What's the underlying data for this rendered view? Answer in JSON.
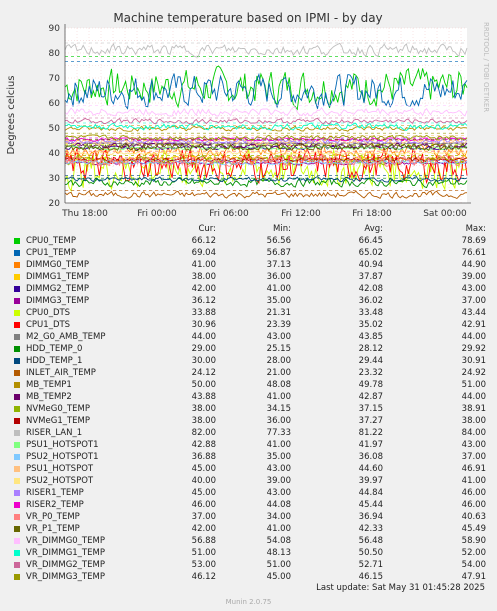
{
  "chart_data": {
    "type": "line",
    "title": "Machine temperature based on IPMI - by day",
    "ylabel": "Degrees celcius",
    "ylim": [
      20,
      90
    ],
    "yticks": [
      20,
      30,
      40,
      50,
      60,
      70,
      80,
      90
    ],
    "xticks": [
      "Thu 18:00",
      "Fri 00:00",
      "Fri 06:00",
      "Fri 12:00",
      "Fri 18:00",
      "Sat 00:00"
    ],
    "grid": true,
    "legend_position": "bottom",
    "columns": [
      "Cur:",
      "Min:",
      "Avg:",
      "Max:"
    ],
    "series": [
      {
        "name": "CPU0_TEMP",
        "color": "#00cc00",
        "cur": "66.12",
        "min": "56.56",
        "avg": "66.45",
        "max": "78.69"
      },
      {
        "name": "CPU1_TEMP",
        "color": "#0066b3",
        "cur": "69.04",
        "min": "56.87",
        "avg": "65.02",
        "max": "76.61"
      },
      {
        "name": "DIMMG0_TEMP",
        "color": "#ff8000",
        "cur": "41.00",
        "min": "37.13",
        "avg": "40.94",
        "max": "44.90"
      },
      {
        "name": "DIMMG1_TEMP",
        "color": "#ffcc00",
        "cur": "38.00",
        "min": "36.00",
        "avg": "37.87",
        "max": "39.00"
      },
      {
        "name": "DIMMG2_TEMP",
        "color": "#330099",
        "cur": "42.00",
        "min": "41.00",
        "avg": "42.08",
        "max": "43.00"
      },
      {
        "name": "DIMMG3_TEMP",
        "color": "#990099",
        "cur": "36.12",
        "min": "35.00",
        "avg": "36.02",
        "max": "37.00"
      },
      {
        "name": "CPU0_DTS",
        "color": "#ccff00",
        "cur": "33.88",
        "min": "21.31",
        "avg": "33.48",
        "max": "43.44"
      },
      {
        "name": "CPU1_DTS",
        "color": "#ff0000",
        "cur": "30.96",
        "min": "23.39",
        "avg": "35.02",
        "max": "42.91"
      },
      {
        "name": "M2_G0_AMB_TEMP",
        "color": "#808080",
        "cur": "44.00",
        "min": "43.00",
        "avg": "43.85",
        "max": "44.00"
      },
      {
        "name": "HDD_TEMP_0",
        "color": "#008f00",
        "cur": "29.00",
        "min": "25.15",
        "avg": "28.12",
        "max": "29.92"
      },
      {
        "name": "HDD_TEMP_1",
        "color": "#00487d",
        "cur": "30.00",
        "min": "28.00",
        "avg": "29.44",
        "max": "30.91"
      },
      {
        "name": "INLET_AIR_TEMP",
        "color": "#b35a00",
        "cur": "24.12",
        "min": "21.00",
        "avg": "23.32",
        "max": "24.92"
      },
      {
        "name": "MB_TEMP1",
        "color": "#b38f00",
        "cur": "50.00",
        "min": "48.08",
        "avg": "49.78",
        "max": "51.00"
      },
      {
        "name": "MB_TEMP2",
        "color": "#6b006b",
        "cur": "43.88",
        "min": "41.00",
        "avg": "42.87",
        "max": "44.00"
      },
      {
        "name": "NVMeG0_TEMP",
        "color": "#8fb300",
        "cur": "38.00",
        "min": "34.15",
        "avg": "37.15",
        "max": "38.91"
      },
      {
        "name": "NVMeG1_TEMP",
        "color": "#b30000",
        "cur": "38.00",
        "min": "36.00",
        "avg": "37.27",
        "max": "38.00"
      },
      {
        "name": "RISER_LAN_1",
        "color": "#bebebe",
        "cur": "82.00",
        "min": "77.33",
        "avg": "81.22",
        "max": "84.00"
      },
      {
        "name": "PSU1_HOTSPOT1",
        "color": "#80ff80",
        "cur": "42.88",
        "min": "41.00",
        "avg": "41.97",
        "max": "43.00"
      },
      {
        "name": "PSU2_HOTSPOT1",
        "color": "#80c9ff",
        "cur": "36.88",
        "min": "35.00",
        "avg": "36.08",
        "max": "37.00"
      },
      {
        "name": "PSU1_HOTSPOT",
        "color": "#ffc080",
        "cur": "45.00",
        "min": "43.00",
        "avg": "44.60",
        "max": "46.91"
      },
      {
        "name": "PSU2_HOTSPOT",
        "color": "#ffe680",
        "cur": "40.00",
        "min": "39.00",
        "avg": "39.97",
        "max": "41.00"
      },
      {
        "name": "RISER1_TEMP",
        "color": "#aa80ff",
        "cur": "45.00",
        "min": "43.00",
        "avg": "44.84",
        "max": "46.00"
      },
      {
        "name": "RISER2_TEMP",
        "color": "#ee00cc",
        "cur": "46.00",
        "min": "44.08",
        "avg": "45.44",
        "max": "46.00"
      },
      {
        "name": "VR_P0_TEMP",
        "color": "#ff8080",
        "cur": "37.00",
        "min": "34.00",
        "avg": "36.94",
        "max": "40.63"
      },
      {
        "name": "VR_P1_TEMP",
        "color": "#666600",
        "cur": "42.00",
        "min": "41.00",
        "avg": "42.33",
        "max": "45.49"
      },
      {
        "name": "VR_DIMMG0_TEMP",
        "color": "#ffbfff",
        "cur": "56.88",
        "min": "54.08",
        "avg": "56.48",
        "max": "58.90"
      },
      {
        "name": "VR_DIMMG1_TEMP",
        "color": "#00ffcc",
        "cur": "51.00",
        "min": "48.13",
        "avg": "50.50",
        "max": "52.00"
      },
      {
        "name": "VR_DIMMG2_TEMP",
        "color": "#cc6699",
        "cur": "53.00",
        "min": "51.00",
        "avg": "52.71",
        "max": "54.00"
      },
      {
        "name": "VR_DIMMG3_TEMP",
        "color": "#999900",
        "cur": "46.12",
        "min": "45.00",
        "avg": "46.15",
        "max": "47.91"
      }
    ]
  },
  "side_label": "RRDTOOL / TOBI OETIKER",
  "last_update": "Last update: Sat May 31 01:45:28 2025",
  "munin_version": "Munin 2.0.75",
  "colors": {
    "background": "#f0f0f0",
    "plot_area": "#ffffff",
    "grid": "#e6b4b4"
  }
}
